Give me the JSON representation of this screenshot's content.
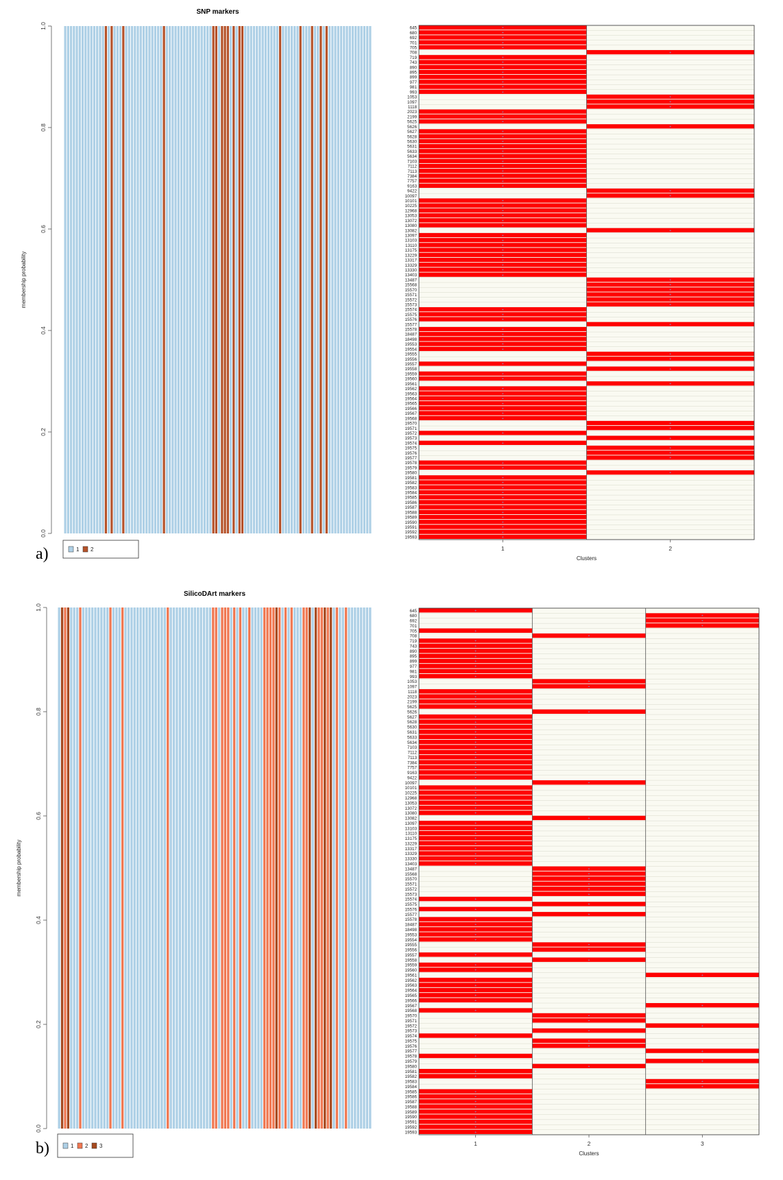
{
  "panels": [
    {
      "label": "a)",
      "chart_data": [
        {
          "type": "bar",
          "title": "SNP markers",
          "ylabel": "membership probability",
          "ylim": [
            0,
            1
          ],
          "yticks": [
            "0.0",
            "0.2",
            "0.4",
            "0.6",
            "0.8",
            "1.0"
          ],
          "bar_count": 106,
          "cluster_ids": [
            1,
            1,
            1,
            1,
            1,
            1,
            1,
            1,
            1,
            1,
            1,
            1,
            1,
            1,
            2,
            1,
            2,
            1,
            1,
            1,
            2,
            1,
            1,
            1,
            1,
            1,
            1,
            1,
            1,
            1,
            1,
            1,
            1,
            1,
            2,
            1,
            1,
            1,
            1,
            1,
            1,
            1,
            1,
            1,
            1,
            1,
            1,
            1,
            1,
            1,
            1,
            2,
            2,
            1,
            2,
            2,
            2,
            1,
            2,
            1,
            2,
            2,
            1,
            1,
            1,
            1,
            1,
            1,
            1,
            1,
            1,
            1,
            1,
            1,
            2,
            1,
            1,
            1,
            1,
            1,
            1,
            2,
            1,
            1,
            1,
            2,
            1,
            1,
            2,
            1,
            2,
            1,
            1,
            1,
            1,
            1,
            1,
            1,
            1,
            1,
            1,
            1,
            1,
            1,
            1,
            1
          ],
          "palette": [
            "#aed0e6",
            "#b5522a"
          ],
          "legend": [
            {
              "key": "1",
              "color": "#aed0e6"
            },
            {
              "key": "2",
              "color": "#b5522a"
            }
          ]
        },
        {
          "type": "heatmap",
          "xlabel": "Clusters",
          "columns": [
            "1",
            "2"
          ],
          "rows": [
            "645",
            "680",
            "692",
            "701",
            "705",
            "708",
            "719",
            "743",
            "890",
            "895",
            "899",
            "977",
            "981",
            "993",
            "1053",
            "1097",
            "1118",
            "2023",
            "2199",
            "5625",
            "5626",
            "5627",
            "5628",
            "5630",
            "5631",
            "5633",
            "5634",
            "7103",
            "7112",
            "7113",
            "7384",
            "7757",
            "9163",
            "9422",
            "10097",
            "10101",
            "10225",
            "12968",
            "13053",
            "13072",
            "13080",
            "13082",
            "13097",
            "13103",
            "13110",
            "13175",
            "13229",
            "13317",
            "13329",
            "13330",
            "13403",
            "13487",
            "15568",
            "15570",
            "15571",
            "15572",
            "15573",
            "15574",
            "15575",
            "15576",
            "15577",
            "15578",
            "18487",
            "18498",
            "19553",
            "19554",
            "19555",
            "19556",
            "19557",
            "19558",
            "19559",
            "19560",
            "19561",
            "19562",
            "19563",
            "19564",
            "19565",
            "19566",
            "19567",
            "19568",
            "19570",
            "19571",
            "19572",
            "19573",
            "19574",
            "19575",
            "19576",
            "19577",
            "19578",
            "19579",
            "19580",
            "19581",
            "19582",
            "19583",
            "19584",
            "19585",
            "19586",
            "19587",
            "19588",
            "19589",
            "19590",
            "19591",
            "19592",
            "19593"
          ],
          "assignments": [
            1,
            1,
            1,
            1,
            1,
            2,
            1,
            1,
            1,
            1,
            1,
            1,
            1,
            1,
            2,
            2,
            2,
            1,
            1,
            1,
            2,
            1,
            1,
            1,
            1,
            1,
            1,
            1,
            1,
            1,
            1,
            1,
            1,
            2,
            2,
            1,
            1,
            1,
            1,
            1,
            1,
            2,
            1,
            1,
            1,
            1,
            1,
            1,
            1,
            1,
            1,
            2,
            2,
            2,
            2,
            2,
            2,
            1,
            1,
            1,
            2,
            1,
            1,
            1,
            1,
            1,
            2,
            2,
            1,
            2,
            1,
            1,
            2,
            1,
            1,
            1,
            1,
            1,
            1,
            1,
            2,
            2,
            1,
            2,
            1,
            2,
            2,
            2,
            1,
            1,
            2,
            1,
            1,
            1,
            1,
            1,
            1,
            1,
            1,
            1,
            1,
            1,
            1,
            1
          ],
          "fill_color": "#ff0000",
          "empty_color": "#fafaf2",
          "grid_color": "#c8cab8",
          "marker_color": "#7a9fd6"
        }
      ]
    },
    {
      "label": "b)",
      "chart_data": [
        {
          "type": "bar",
          "title": "SilicoDArt markers",
          "ylabel": "membership probability",
          "ylim": [
            0,
            1
          ],
          "yticks": [
            "0.0",
            "0.2",
            "0.4",
            "0.6",
            "0.8",
            "1.0"
          ],
          "bar_count": 104,
          "cluster_ids": [
            1,
            3,
            2,
            3,
            1,
            1,
            1,
            2,
            1,
            1,
            1,
            1,
            1,
            1,
            1,
            1,
            1,
            2,
            1,
            1,
            1,
            2,
            1,
            1,
            1,
            1,
            1,
            1,
            1,
            1,
            1,
            1,
            1,
            1,
            1,
            1,
            2,
            1,
            1,
            1,
            1,
            1,
            1,
            1,
            1,
            1,
            1,
            1,
            1,
            1,
            1,
            2,
            2,
            1,
            2,
            2,
            2,
            1,
            2,
            1,
            2,
            1,
            1,
            2,
            1,
            1,
            1,
            1,
            2,
            2,
            2,
            2,
            3,
            2,
            1,
            2,
            1,
            2,
            1,
            1,
            1,
            2,
            2,
            3,
            1,
            3,
            2,
            2,
            3,
            2,
            3,
            1,
            2,
            1,
            1,
            2,
            1,
            1,
            1,
            1,
            1,
            1,
            1,
            1
          ],
          "palette": [
            "#aed0e6",
            "#f07852",
            "#a64a20"
          ],
          "legend": [
            {
              "key": "1",
              "color": "#aed0e6"
            },
            {
              "key": "2",
              "color": "#f07852"
            },
            {
              "key": "3",
              "color": "#a64a20"
            }
          ]
        },
        {
          "type": "heatmap",
          "xlabel": "Clusters",
          "columns": [
            "1",
            "2",
            "3"
          ],
          "rows": [
            "645",
            "680",
            "692",
            "701",
            "705",
            "708",
            "719",
            "743",
            "890",
            "895",
            "899",
            "977",
            "981",
            "993",
            "1053",
            "1097",
            "1118",
            "2023",
            "2199",
            "5625",
            "5626",
            "5627",
            "5628",
            "5630",
            "5631",
            "5633",
            "5634",
            "7103",
            "7112",
            "7113",
            "7384",
            "7757",
            "9163",
            "9422",
            "10097",
            "10101",
            "10225",
            "12968",
            "13053",
            "13072",
            "13080",
            "13082",
            "13097",
            "13103",
            "13110",
            "13175",
            "13229",
            "13317",
            "13329",
            "13330",
            "13403",
            "13487",
            "15568",
            "15570",
            "15571",
            "15572",
            "15573",
            "15574",
            "15575",
            "15576",
            "15577",
            "15578",
            "18487",
            "18498",
            "19553",
            "19554",
            "19555",
            "19556",
            "19557",
            "19558",
            "19559",
            "19560",
            "19561",
            "19562",
            "19563",
            "19564",
            "19565",
            "19566",
            "19567",
            "19568",
            "19570",
            "19571",
            "19572",
            "19573",
            "19574",
            "19575",
            "19576",
            "19577",
            "19578",
            "19579",
            "19580",
            "19581",
            "19582",
            "19583",
            "19584",
            "19585",
            "19586",
            "19587",
            "19588",
            "19589",
            "19590",
            "19591",
            "19592",
            "19593"
          ],
          "assignments": [
            1,
            3,
            3,
            3,
            1,
            2,
            1,
            1,
            1,
            1,
            1,
            1,
            1,
            1,
            2,
            2,
            1,
            1,
            1,
            1,
            2,
            1,
            1,
            1,
            1,
            1,
            1,
            1,
            1,
            1,
            1,
            1,
            1,
            1,
            2,
            1,
            1,
            1,
            1,
            1,
            1,
            2,
            1,
            1,
            1,
            1,
            1,
            1,
            1,
            1,
            1,
            2,
            2,
            2,
            2,
            2,
            2,
            1,
            2,
            1,
            2,
            1,
            1,
            1,
            1,
            1,
            2,
            2,
            1,
            2,
            1,
            1,
            3,
            1,
            1,
            1,
            1,
            1,
            3,
            1,
            2,
            2,
            3,
            2,
            1,
            2,
            2,
            3,
            1,
            3,
            2,
            1,
            1,
            3,
            3,
            1,
            1,
            1,
            1,
            1,
            1,
            1,
            1,
            1
          ],
          "fill_color": "#ff0000",
          "empty_color": "#fafaf2",
          "grid_color": "#c8cab8",
          "marker_color": "#7a9fd6"
        }
      ]
    }
  ]
}
